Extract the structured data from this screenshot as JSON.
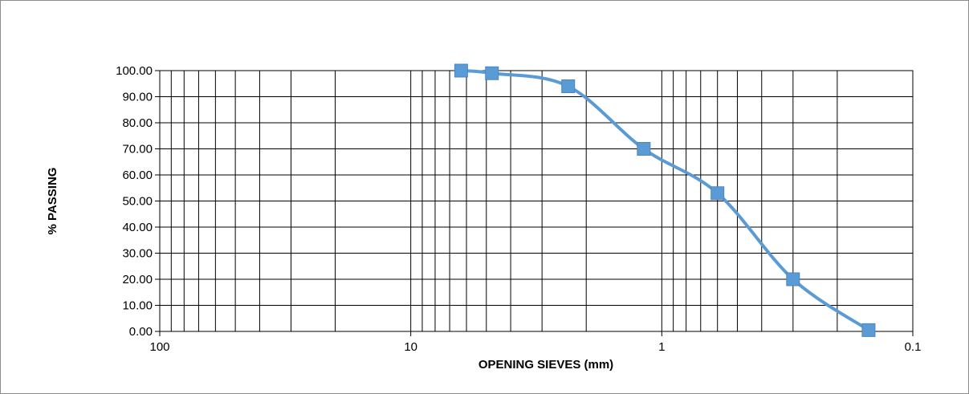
{
  "chart_data": {
    "type": "line",
    "title": "",
    "xlabel": "OPENING SIEVES (mm)",
    "ylabel": "% PASSING",
    "x_scale": "log",
    "x_reversed": true,
    "xlim": [
      100,
      0.1
    ],
    "ylim": [
      0,
      100
    ],
    "x_tick_labels": [
      "100",
      "10",
      "1",
      "0.1"
    ],
    "x_ticks": [
      100,
      10,
      1,
      0.1
    ],
    "y_ticks": [
      0,
      10,
      20,
      30,
      40,
      50,
      60,
      70,
      80,
      90,
      100
    ],
    "y_tick_labels": [
      "0.00",
      "10.00",
      "20.00",
      "30.00",
      "40.00",
      "50.00",
      "60.00",
      "70.00",
      "80.00",
      "90.00",
      "100.00"
    ],
    "grid": true,
    "legend": "none",
    "series": [
      {
        "x": [
          6.3,
          4.75,
          2.36,
          1.18,
          0.6,
          0.3,
          0.15
        ],
        "y": [
          100.0,
          99.0,
          94.0,
          70.0,
          53.0,
          20.0,
          0.5
        ],
        "color": "#5b9bd5",
        "marker": "square",
        "smooth": true
      }
    ]
  }
}
